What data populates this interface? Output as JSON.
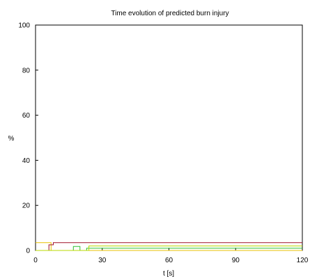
{
  "chart_data": {
    "type": "line",
    "title": "Time evolution of predicted burn injury",
    "xlabel": "t [s]",
    "ylabel": "%",
    "xlim": [
      0,
      120
    ],
    "ylim": [
      0,
      100
    ],
    "x_ticks": [
      0,
      30,
      60,
      90,
      120
    ],
    "y_ticks": [
      0,
      20,
      40,
      60,
      80,
      100
    ],
    "grid": false,
    "series": [
      {
        "color": "#e8c000",
        "x": [
          0,
          7,
          7,
          120
        ],
        "y": [
          3.5,
          3.5,
          0,
          0
        ]
      },
      {
        "color": "#a01028",
        "x": [
          0,
          6,
          6,
          8,
          8,
          120
        ],
        "y": [
          0,
          0,
          2.5,
          2.5,
          3.5,
          3.5
        ]
      },
      {
        "color": "#30c030",
        "x": [
          0,
          17,
          17,
          20,
          20,
          23,
          23,
          120
        ],
        "y": [
          0,
          0,
          1.8,
          1.8,
          0,
          0,
          1.0,
          1.0
        ]
      },
      {
        "color": "#b8d800",
        "x": [
          0,
          24,
          24,
          120
        ],
        "y": [
          0,
          0,
          2.0,
          2.0
        ]
      }
    ]
  }
}
